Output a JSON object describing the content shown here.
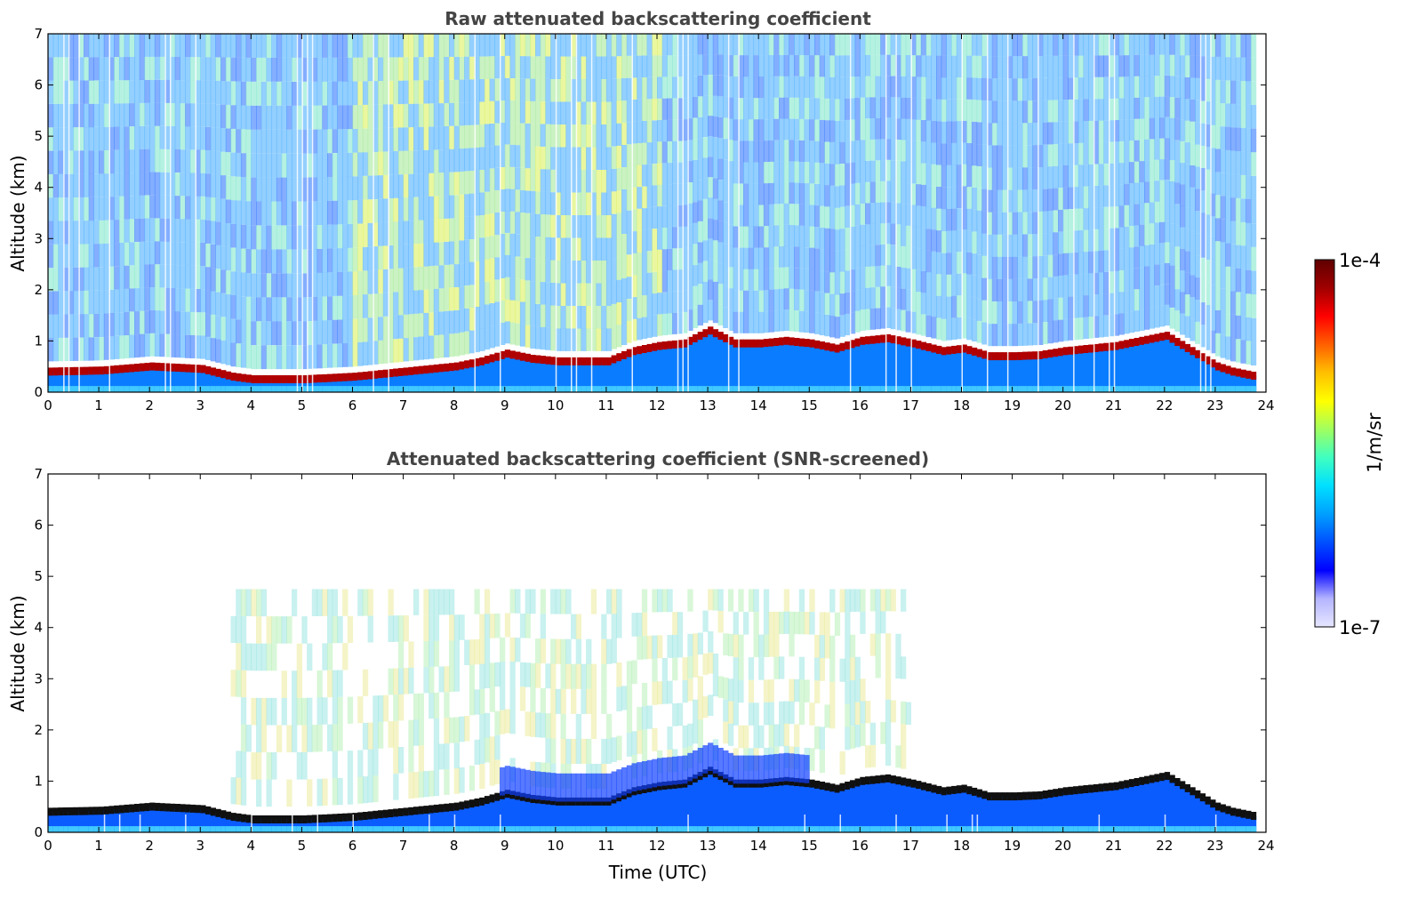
{
  "chart_data": [
    {
      "type": "heatmap",
      "title": "Raw attenuated backscattering coefficient",
      "xlabel": "",
      "ylabel": "Altitude (km)",
      "xlim": [
        0,
        24
      ],
      "ylim": [
        0,
        7
      ],
      "xticks": [
        "0",
        "1",
        "2",
        "3",
        "4",
        "5",
        "6",
        "7",
        "8",
        "9",
        "10",
        "11",
        "12",
        "13",
        "14",
        "15",
        "16",
        "17",
        "18",
        "19",
        "20",
        "21",
        "22",
        "23",
        "24"
      ],
      "yticks": [
        "0",
        "1",
        "2",
        "3",
        "4",
        "5",
        "6",
        "7"
      ],
      "boundary_layer_top_km": [
        [
          0,
          0.4
        ],
        [
          1,
          0.42
        ],
        [
          2,
          0.5
        ],
        [
          3,
          0.45
        ],
        [
          3.6,
          0.3
        ],
        [
          4,
          0.25
        ],
        [
          5,
          0.25
        ],
        [
          6,
          0.3
        ],
        [
          7,
          0.4
        ],
        [
          7.5,
          0.45
        ],
        [
          8,
          0.5
        ],
        [
          8.5,
          0.6
        ],
        [
          9,
          0.75
        ],
        [
          9.5,
          0.65
        ],
        [
          10,
          0.6
        ],
        [
          11,
          0.6
        ],
        [
          11.5,
          0.8
        ],
        [
          12,
          0.9
        ],
        [
          12.5,
          0.95
        ],
        [
          13,
          1.2
        ],
        [
          13.5,
          0.95
        ],
        [
          14,
          0.95
        ],
        [
          14.5,
          1.0
        ],
        [
          15,
          0.95
        ],
        [
          15.5,
          0.85
        ],
        [
          16,
          1.0
        ],
        [
          16.5,
          1.05
        ],
        [
          17,
          0.95
        ],
        [
          17.6,
          0.8
        ],
        [
          18,
          0.85
        ],
        [
          18.5,
          0.7
        ],
        [
          19,
          0.7
        ],
        [
          19.5,
          0.72
        ],
        [
          20,
          0.8
        ],
        [
          20.5,
          0.85
        ],
        [
          21,
          0.9
        ],
        [
          21.5,
          1.0
        ],
        [
          22,
          1.1
        ],
        [
          22.5,
          0.8
        ],
        [
          23,
          0.5
        ],
        [
          23.3,
          0.4
        ],
        [
          23.8,
          0.3
        ]
      ],
      "high_altitude_haze_hours": [
        6,
        12
      ]
    },
    {
      "type": "heatmap",
      "title": "Attenuated backscattering coefficient (SNR-screened)",
      "xlabel": "Time (UTC)",
      "ylabel": "Altitude (km)",
      "xlim": [
        0,
        24
      ],
      "ylim": [
        0,
        7
      ],
      "xticks": [
        "0",
        "1",
        "2",
        "3",
        "4",
        "5",
        "6",
        "7",
        "8",
        "9",
        "10",
        "11",
        "12",
        "13",
        "14",
        "15",
        "16",
        "17",
        "18",
        "19",
        "20",
        "21",
        "22",
        "23",
        "24"
      ],
      "yticks": [
        "0",
        "1",
        "2",
        "3",
        "4",
        "5",
        "6",
        "7"
      ]
    }
  ],
  "colorbar": {
    "max_label": "1e-4",
    "min_label": "1e-7",
    "unit_label": "1/m/sr",
    "colors": [
      "#e6e6ff",
      "#b4b4ff",
      "#0000ff",
      "#0050ff",
      "#00a0ff",
      "#00e0ff",
      "#40ffc0",
      "#a0ff60",
      "#ffff00",
      "#ffc000",
      "#ff6000",
      "#ff0000",
      "#a00000",
      "#600000"
    ]
  }
}
